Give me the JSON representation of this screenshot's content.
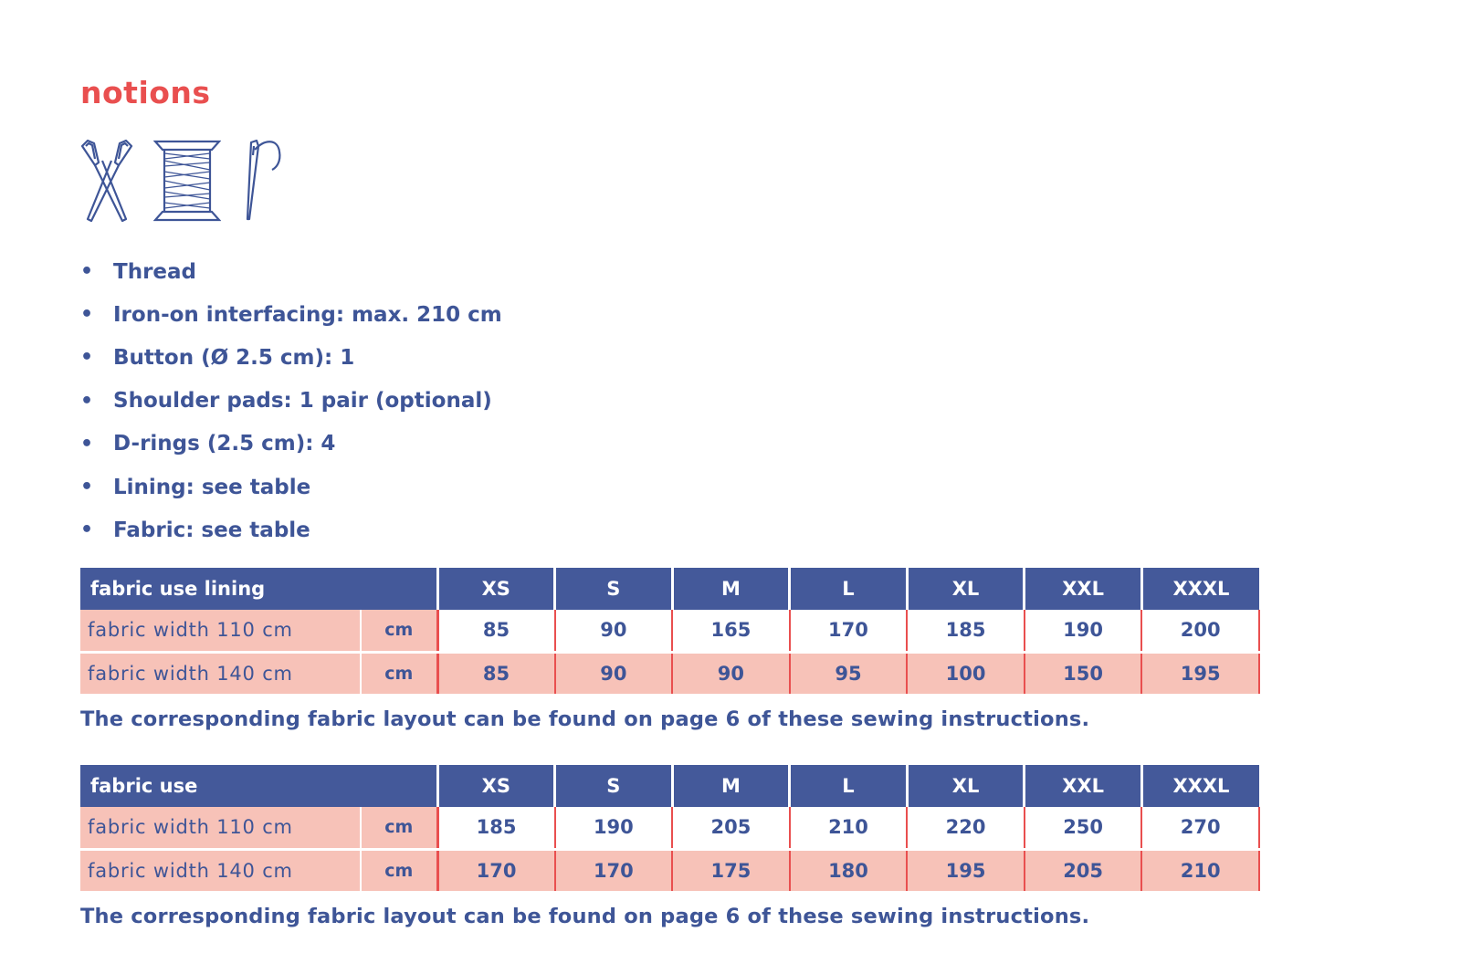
{
  "heading": "notions",
  "icons": [
    "scissors-icon",
    "thread-spool-icon",
    "needle-icon"
  ],
  "colors": {
    "accent": "#e94f4f",
    "text": "#3e5597",
    "header_bg": "#44599a",
    "row_fill": "#f7c2b8"
  },
  "notions": [
    "Thread",
    "Iron-on interfacing: max. 210 cm",
    "Button (Ø 2.5 cm): 1",
    "Shoulder pads: 1 pair (optional)",
    "D-rings (2.5 cm): 4",
    "Lining: see table",
    "Fabric: see table"
  ],
  "bullet": "•",
  "tables": [
    {
      "title": "fabric use lining",
      "sizes": [
        "XS",
        "S",
        "M",
        "L",
        "XL",
        "XXL",
        "XXXL"
      ],
      "rows": [
        {
          "label": "fabric width 110 cm",
          "unit": "cm",
          "values": [
            "85",
            "90",
            "165",
            "170",
            "185",
            "190",
            "200"
          ]
        },
        {
          "label": "fabric width 140 cm",
          "unit": "cm",
          "values": [
            "85",
            "90",
            "90",
            "95",
            "100",
            "150",
            "195"
          ]
        }
      ],
      "note": "The corresponding fabric layout can be found on page 6 of these sewing instructions."
    },
    {
      "title": "fabric use",
      "sizes": [
        "XS",
        "S",
        "M",
        "L",
        "XL",
        "XXL",
        "XXXL"
      ],
      "rows": [
        {
          "label": "fabric width 110 cm",
          "unit": "cm",
          "values": [
            "185",
            "190",
            "205",
            "210",
            "220",
            "250",
            "270"
          ]
        },
        {
          "label": "fabric width 140 cm",
          "unit": "cm",
          "values": [
            "170",
            "170",
            "175",
            "180",
            "195",
            "205",
            "210"
          ]
        }
      ],
      "note": "The corresponding fabric layout can be found on page 6 of these sewing instructions."
    }
  ]
}
